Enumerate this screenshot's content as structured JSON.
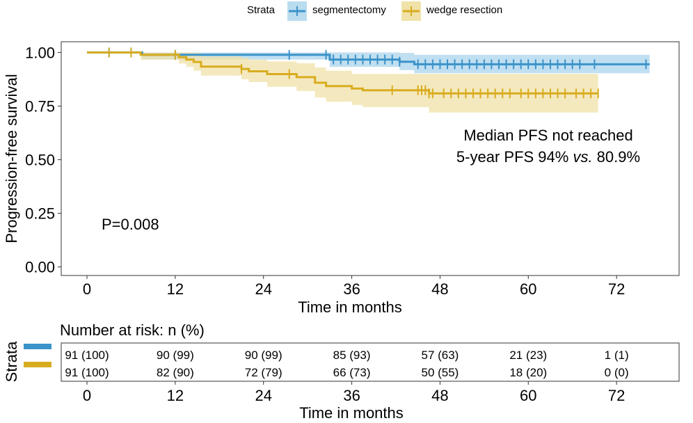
{
  "legend": {
    "title": "Strata",
    "items": [
      {
        "label": "segmentectomy",
        "color": "#3a93c9",
        "fill": "#b9dcef"
      },
      {
        "label": "wedge resection",
        "color": "#d9ac1f",
        "fill": "#f0e2a8"
      }
    ]
  },
  "annotations": {
    "median": "Median PFS not reached",
    "five_year_prefix": "5-year PFS 94% ",
    "five_year_italic": "vs.",
    "five_year_suffix": " 80.9%",
    "pvalue": "P=0.008"
  },
  "risk_table": {
    "title": "Number at risk: n (%)",
    "ylabel": "Strata",
    "xlabel": "Time in months",
    "times": [
      0,
      12,
      24,
      36,
      48,
      60,
      72
    ],
    "rows": [
      {
        "color": "#3a93c9",
        "values": [
          "91 (100)",
          "90 (99)",
          "90 (99)",
          "85 (93)",
          "57 (63)",
          "21 (23)",
          "1 (1)"
        ]
      },
      {
        "color": "#d9ac1f",
        "values": [
          "91 (100)",
          "82 (90)",
          "72 (79)",
          "66 (73)",
          "50 (55)",
          "18 (20)",
          "0 (0)"
        ]
      }
    ]
  },
  "chart_data": {
    "type": "line",
    "xlabel": "Time in months",
    "ylabel": "Progression-free survival",
    "xlim": [
      -3.5,
      80.5
    ],
    "ylim": [
      -0.04,
      1.05
    ],
    "xticks": [
      0,
      12,
      24,
      36,
      48,
      60,
      72
    ],
    "yticks": [
      0,
      0.25,
      0.5,
      0.75,
      1
    ],
    "ytick_labels": [
      "0.00",
      "0.25",
      "0.50",
      "0.75",
      "1.00"
    ],
    "series": [
      {
        "name": "segmentectomy",
        "color": "#3a93c9",
        "band_color": "#b9dcef",
        "steps": [
          [
            0,
            1.0
          ],
          [
            7.5,
            0.989
          ],
          [
            33,
            0.967
          ],
          [
            42.5,
            0.957
          ],
          [
            44.5,
            0.945
          ],
          [
            76.5,
            0.945
          ]
        ],
        "lower": [
          [
            0,
            1.0
          ],
          [
            7.5,
            0.967
          ],
          [
            33,
            0.933
          ],
          [
            42.5,
            0.918
          ],
          [
            44.5,
            0.903
          ],
          [
            76.5,
            0.903
          ]
        ],
        "upper": [
          [
            0,
            1.0
          ],
          [
            7.5,
            1.0
          ],
          [
            33,
            1.0
          ],
          [
            42.5,
            0.998
          ],
          [
            44.5,
            0.989
          ],
          [
            76.5,
            0.989
          ]
        ],
        "censor": [
          3,
          6,
          12,
          27.5,
          32.5,
          33.5,
          34.5,
          35.5,
          36.5,
          37.5,
          38.5,
          39.5,
          40.5,
          41.5,
          42.5,
          45,
          46,
          47,
          48,
          49,
          50,
          51,
          52,
          53,
          54,
          55,
          56,
          57,
          58,
          59,
          60,
          61,
          62,
          63,
          64,
          65,
          66,
          67,
          69,
          76
        ]
      },
      {
        "name": "wedge resection",
        "color": "#d9ac1f",
        "band_color": "#f0e2a8",
        "steps": [
          [
            0,
            1.0
          ],
          [
            7.3,
            0.989
          ],
          [
            12.5,
            0.978
          ],
          [
            13.5,
            0.967
          ],
          [
            14.5,
            0.956
          ],
          [
            15.5,
            0.934
          ],
          [
            21,
            0.923
          ],
          [
            22,
            0.912
          ],
          [
            24.5,
            0.899
          ],
          [
            28.5,
            0.885
          ],
          [
            31,
            0.859
          ],
          [
            32.5,
            0.843
          ],
          [
            36,
            0.832
          ],
          [
            37.5,
            0.824
          ],
          [
            46.5,
            0.809
          ],
          [
            69.5,
            0.809
          ]
        ],
        "lower": [
          [
            0,
            1.0
          ],
          [
            7.3,
            0.967
          ],
          [
            12.5,
            0.948
          ],
          [
            13.5,
            0.933
          ],
          [
            14.5,
            0.915
          ],
          [
            15.5,
            0.892
          ],
          [
            21,
            0.875
          ],
          [
            22,
            0.862
          ],
          [
            24.5,
            0.84
          ],
          [
            28.5,
            0.82
          ],
          [
            31,
            0.79
          ],
          [
            32.5,
            0.77
          ],
          [
            36,
            0.755
          ],
          [
            37.5,
            0.745
          ],
          [
            46.5,
            0.72
          ],
          [
            69.5,
            0.72
          ]
        ],
        "upper": [
          [
            0,
            1.0
          ],
          [
            7.3,
            1.0
          ],
          [
            12.5,
            1.0
          ],
          [
            13.5,
            1.0
          ],
          [
            14.5,
            0.998
          ],
          [
            15.5,
            0.982
          ],
          [
            21,
            0.975
          ],
          [
            22,
            0.966
          ],
          [
            24.5,
            0.958
          ],
          [
            28.5,
            0.95
          ],
          [
            31,
            0.93
          ],
          [
            32.5,
            0.915
          ],
          [
            36,
            0.9
          ],
          [
            37.5,
            0.9
          ],
          [
            46.5,
            0.9
          ],
          [
            69.5,
            0.9
          ]
        ],
        "censor": [
          3,
          6,
          12,
          21,
          27.5,
          41.5,
          45,
          45.5,
          46,
          46.5,
          47,
          48.5,
          49.5,
          50.5,
          51.5,
          52.5,
          53.5,
          54.5,
          55.5,
          56.5,
          57.5,
          59,
          60,
          61,
          62,
          63,
          64,
          65,
          66.5,
          67.5,
          68.5,
          69.5
        ]
      }
    ]
  }
}
